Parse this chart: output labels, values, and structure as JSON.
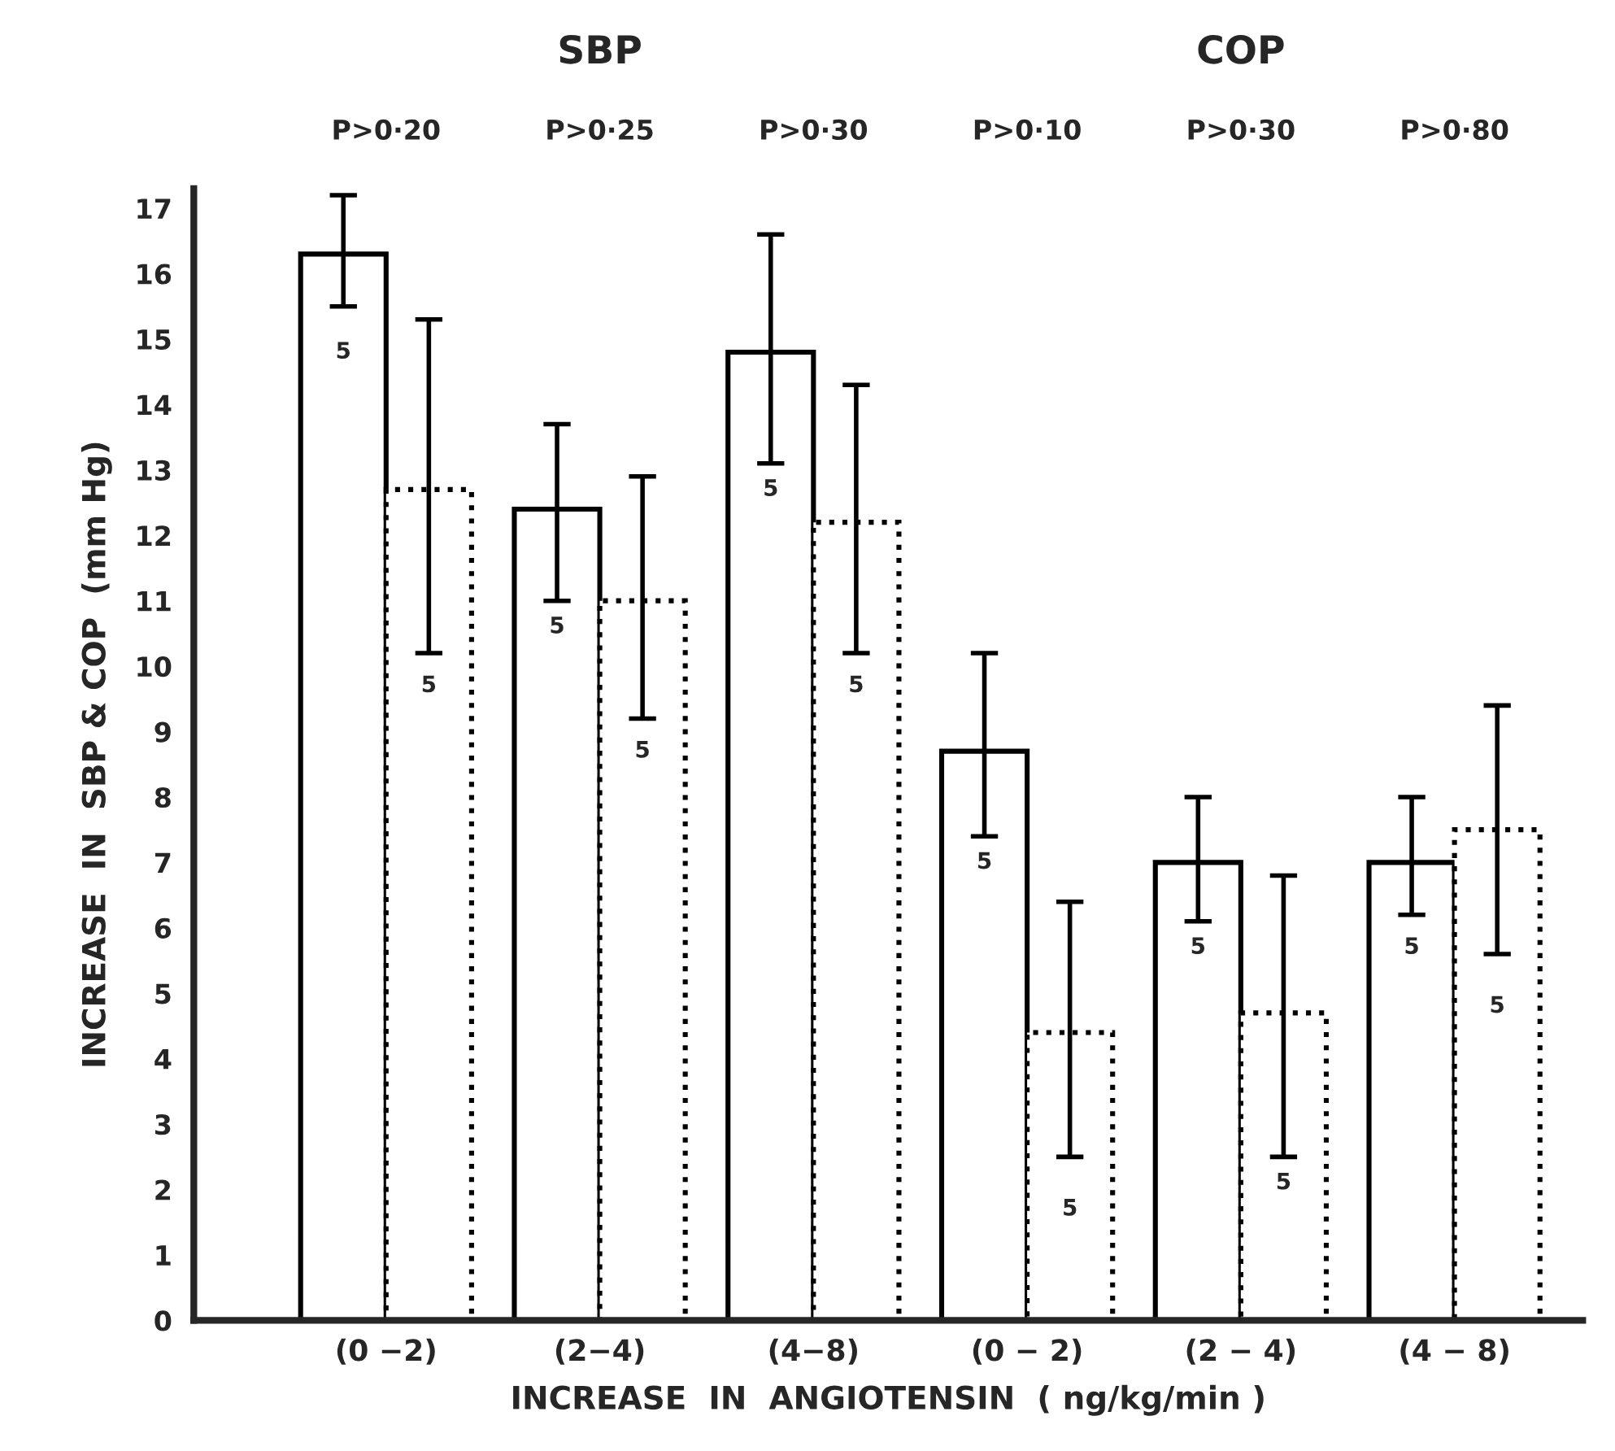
{
  "chart_data": {
    "type": "bar",
    "xlabel": "INCREASE  IN  ANGIOTENSIN  ( ng/kg/min )",
    "ylabel": "INCREASE  IN  SBP & COP  (mm Hg)",
    "categories": [
      "(0 −2)",
      "(2−4)",
      "(4−8)",
      "(0 − 2)",
      "(2 − 4)",
      "(4 − 8)"
    ],
    "series": [
      {
        "color": "#ffffff",
        "line_style": "solid",
        "values": [
          16.3,
          12.4,
          14.8,
          8.7,
          7.0,
          7.0
        ],
        "errors": [
          [
            15.5,
            17.2
          ],
          [
            11.0,
            13.7
          ],
          [
            13.1,
            16.6
          ],
          [
            7.4,
            10.2
          ],
          [
            6.1,
            8.0
          ],
          [
            6.2,
            8.0
          ]
        ]
      },
      {
        "color": "#ffffff",
        "line_style": "dotted",
        "values": [
          12.7,
          11.0,
          12.2,
          4.4,
          4.7,
          7.5
        ],
        "errors": [
          [
            10.2,
            15.3
          ],
          [
            9.2,
            12.9
          ],
          [
            10.2,
            14.3
          ],
          [
            2.5,
            6.4
          ],
          [
            2.5,
            6.8
          ],
          [
            5.6,
            9.4
          ]
        ]
      }
    ],
    "ylim": [
      0,
      17.3
    ],
    "yticks": [
      0,
      1,
      2,
      3,
      4,
      5,
      6,
      7,
      8,
      9,
      10,
      11,
      12,
      13,
      14,
      15,
      16,
      17
    ],
    "grid": false,
    "legend": false,
    "annotations": [
      "SBP",
      "COP",
      "P>0·20",
      "P>0·25",
      "P>0·30",
      "P>0·10",
      "P>0·30",
      "P>0·80",
      {
        "text": "5",
        "x": "(0 −2)",
        "y": 14.8
      },
      {
        "text": "5",
        "x": "(0 −2)",
        "y": 9.7
      },
      {
        "text": "5",
        "x": "(2−4)",
        "y": 10.6
      },
      {
        "text": "5",
        "x": "(2−4)",
        "y": 8.7
      },
      {
        "text": "5",
        "x": "(4−8)",
        "y": 12.7
      },
      {
        "text": "5",
        "x": "(4−8)",
        "y": 9.7
      },
      {
        "text": "5",
        "x": "(0 − 2)",
        "y": 7.0
      },
      {
        "text": "5",
        "x": "(0 − 2)",
        "y": 1.7
      },
      {
        "text": "5",
        "x": "(2 − 4)",
        "y": 5.7
      },
      {
        "text": "5",
        "x": "(2 − 4)",
        "y": 2.1
      },
      {
        "text": "5",
        "x": "(4 − 8)",
        "y": 5.7
      },
      {
        "text": "5",
        "x": "(4 − 8)",
        "y": 4.8
      }
    ]
  }
}
